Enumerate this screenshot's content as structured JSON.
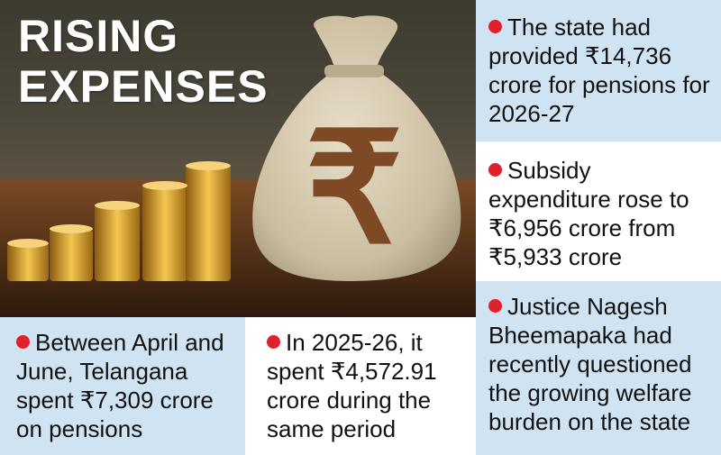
{
  "headline": {
    "line1": "RISING",
    "line2": "EXPENSES"
  },
  "bag_symbol": "₹",
  "colors": {
    "panel_blue": "#cfe3f2",
    "bullet_red": "#e0202a",
    "text": "#111111"
  },
  "facts": {
    "pension_provision": "The state had provided ₹14,736 crore for pensions for 2026-27",
    "subsidy": "Subsidy expenditure rose to ₹6,956 crore from ₹5,933 crore",
    "justice": "Justice Nagesh Bheemapaka had recently questioned the growing welfare burden on the state",
    "april_june": "Between April and June, Telangana spent ₹7,309 crore on pensions",
    "previous_year": "In 2025-26, it spent ₹4,572.91 crore during the same period"
  }
}
